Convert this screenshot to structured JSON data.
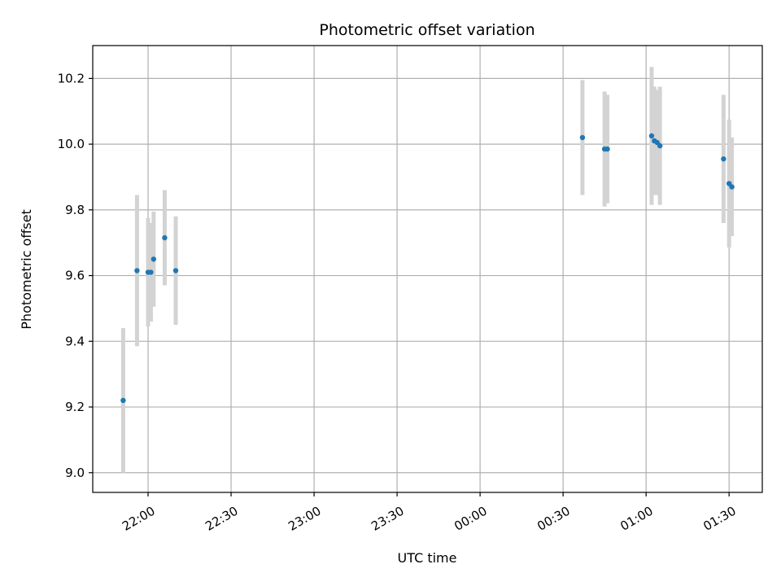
{
  "chart_data": {
    "type": "scatter",
    "title": "Photometric offset variation",
    "xlabel": "UTC time",
    "ylabel": "Photometric offset",
    "grid": true,
    "colors": {
      "point": "#1f77b4",
      "errorbar": "#d3d3d3",
      "grid": "#b0b0b0",
      "axes": "#000000"
    },
    "xlim": [
      "21:40",
      "01:42"
    ],
    "ylim": [
      8.94,
      10.3
    ],
    "x_ticks": [
      "22:00",
      "22:30",
      "23:00",
      "23:30",
      "00:00",
      "00:30",
      "01:00",
      "01:30"
    ],
    "y_ticks": [
      "9.0",
      "9.2",
      "9.4",
      "9.6",
      "9.8",
      "10.0",
      "10.2"
    ],
    "y_tick_values": [
      9.0,
      9.2,
      9.4,
      9.6,
      9.8,
      10.0,
      10.2
    ],
    "points": [
      {
        "time": "21:51",
        "y": 9.22,
        "err": 0.22
      },
      {
        "time": "21:56",
        "y": 9.615,
        "err": 0.23
      },
      {
        "time": "22:00",
        "y": 9.61,
        "err": 0.165
      },
      {
        "time": "22:01",
        "y": 9.61,
        "err": 0.15
      },
      {
        "time": "22:02",
        "y": 9.65,
        "err": 0.145
      },
      {
        "time": "22:06",
        "y": 9.715,
        "err": 0.145
      },
      {
        "time": "22:10",
        "y": 9.615,
        "err": 0.165
      },
      {
        "time": "00:37",
        "y": 10.02,
        "err": 0.175
      },
      {
        "time": "00:45",
        "y": 9.985,
        "err": 0.175
      },
      {
        "time": "00:46",
        "y": 9.985,
        "err": 0.165
      },
      {
        "time": "01:02",
        "y": 10.025,
        "err": 0.21
      },
      {
        "time": "01:03",
        "y": 10.01,
        "err": 0.165
      },
      {
        "time": "01:04",
        "y": 10.005,
        "err": 0.16
      },
      {
        "time": "01:05",
        "y": 9.995,
        "err": 0.18
      },
      {
        "time": "01:28",
        "y": 9.955,
        "err": 0.195
      },
      {
        "time": "01:30",
        "y": 9.88,
        "err": 0.195
      },
      {
        "time": "01:31",
        "y": 9.87,
        "err": 0.15
      }
    ]
  }
}
